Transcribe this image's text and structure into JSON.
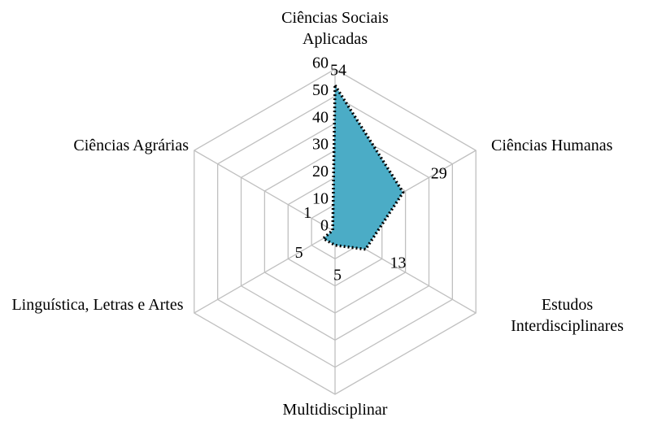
{
  "chart_data": {
    "type": "radar",
    "categories": [
      "Ciências Sociais Aplicadas",
      "Ciências Humanas",
      "Estudos Interdisciplinares",
      "Multidisciplinar",
      "Linguística, Letras e Artes",
      "Ciências Agrárias"
    ],
    "values": [
      54,
      29,
      13,
      5,
      5,
      1
    ],
    "color": "#4bacc6",
    "rlim": [
      0,
      60
    ],
    "rticks": [
      0,
      10,
      20,
      30,
      40,
      50,
      60
    ],
    "grid": true
  }
}
